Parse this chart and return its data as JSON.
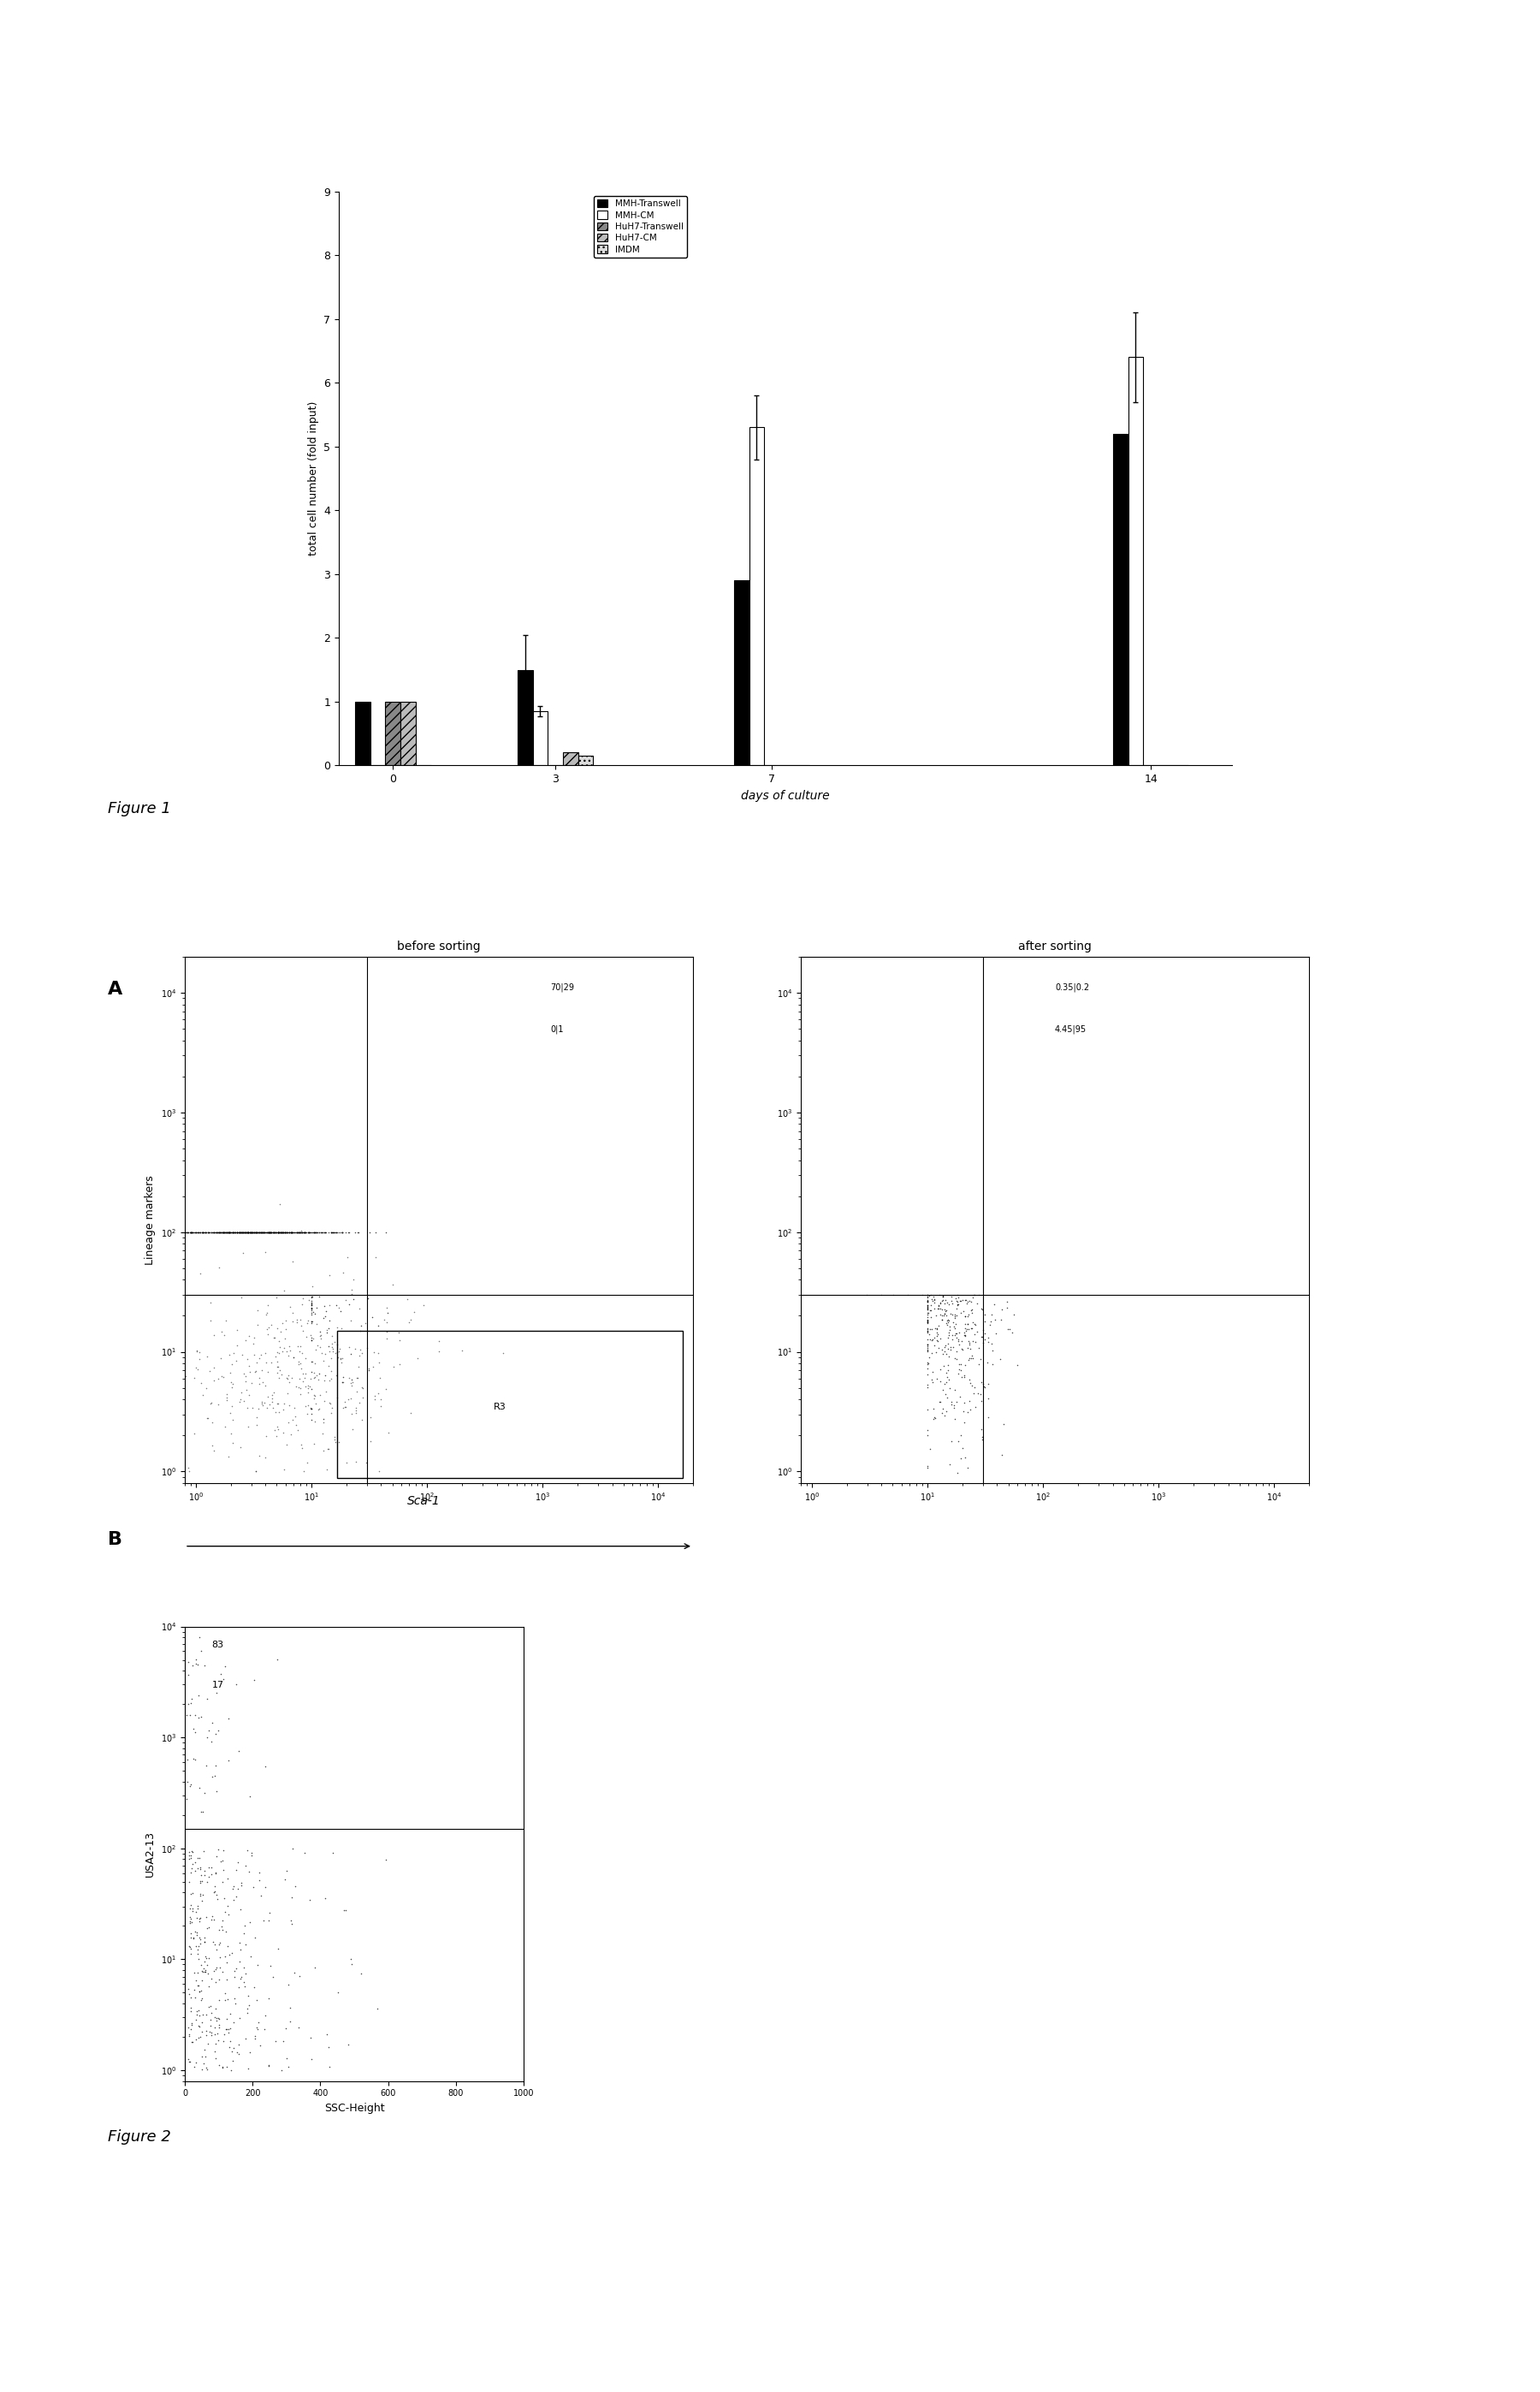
{
  "fig1": {
    "xlabel": "days of culture",
    "ylabel": "total cell number (fold input)",
    "ylim": [
      0,
      9
    ],
    "yticks": [
      0,
      1,
      2,
      3,
      4,
      5,
      6,
      7,
      8,
      9
    ],
    "group_positions": [
      0,
      3,
      7,
      14
    ],
    "bar_width": 0.28,
    "series": {
      "MMH-Transwell": {
        "color": "#000000",
        "hatch": "",
        "values": [
          1.0,
          1.5,
          2.9,
          5.2
        ],
        "errors": [
          0.0,
          0.55,
          0.0,
          0.0
        ]
      },
      "MMH-CM": {
        "color": "#ffffff",
        "hatch": "",
        "values": [
          0.0,
          0.85,
          5.3,
          6.4
        ],
        "errors": [
          0.0,
          0.08,
          0.5,
          0.7
        ]
      },
      "HuH7-Transwell": {
        "color": "#888888",
        "hatch": "///",
        "values": [
          1.0,
          0.0,
          0.0,
          0.0
        ],
        "errors": [
          0.0,
          0.0,
          0.0,
          0.0
        ]
      },
      "HuH7-CM": {
        "color": "#bbbbbb",
        "hatch": "///",
        "values": [
          1.0,
          0.2,
          0.0,
          0.0
        ],
        "errors": [
          0.0,
          0.0,
          0.0,
          0.0
        ]
      },
      "IMDM": {
        "color": "#dddddd",
        "hatch": "...",
        "values": [
          0.0,
          0.15,
          0.0,
          0.0
        ],
        "errors": [
          0.0,
          0.0,
          0.0,
          0.0
        ]
      }
    },
    "legend_order": [
      "MMH-Transwell",
      "MMH-CM",
      "HuH7-Transwell",
      "HuH7-CM",
      "IMDM"
    ]
  },
  "panel_A_left_title": "before sorting",
  "panel_A_right_title": "after sorting",
  "panel_A_ylabel": "Lineage markers",
  "panel_A_xlabel": "Sca-1",
  "panel_B_xlabel": "SSC-Height",
  "panel_B_ylabel": "USA2-13",
  "panel_B_xticks": [
    0,
    200,
    400,
    600,
    800,
    1000
  ],
  "background_color": "#ffffff"
}
